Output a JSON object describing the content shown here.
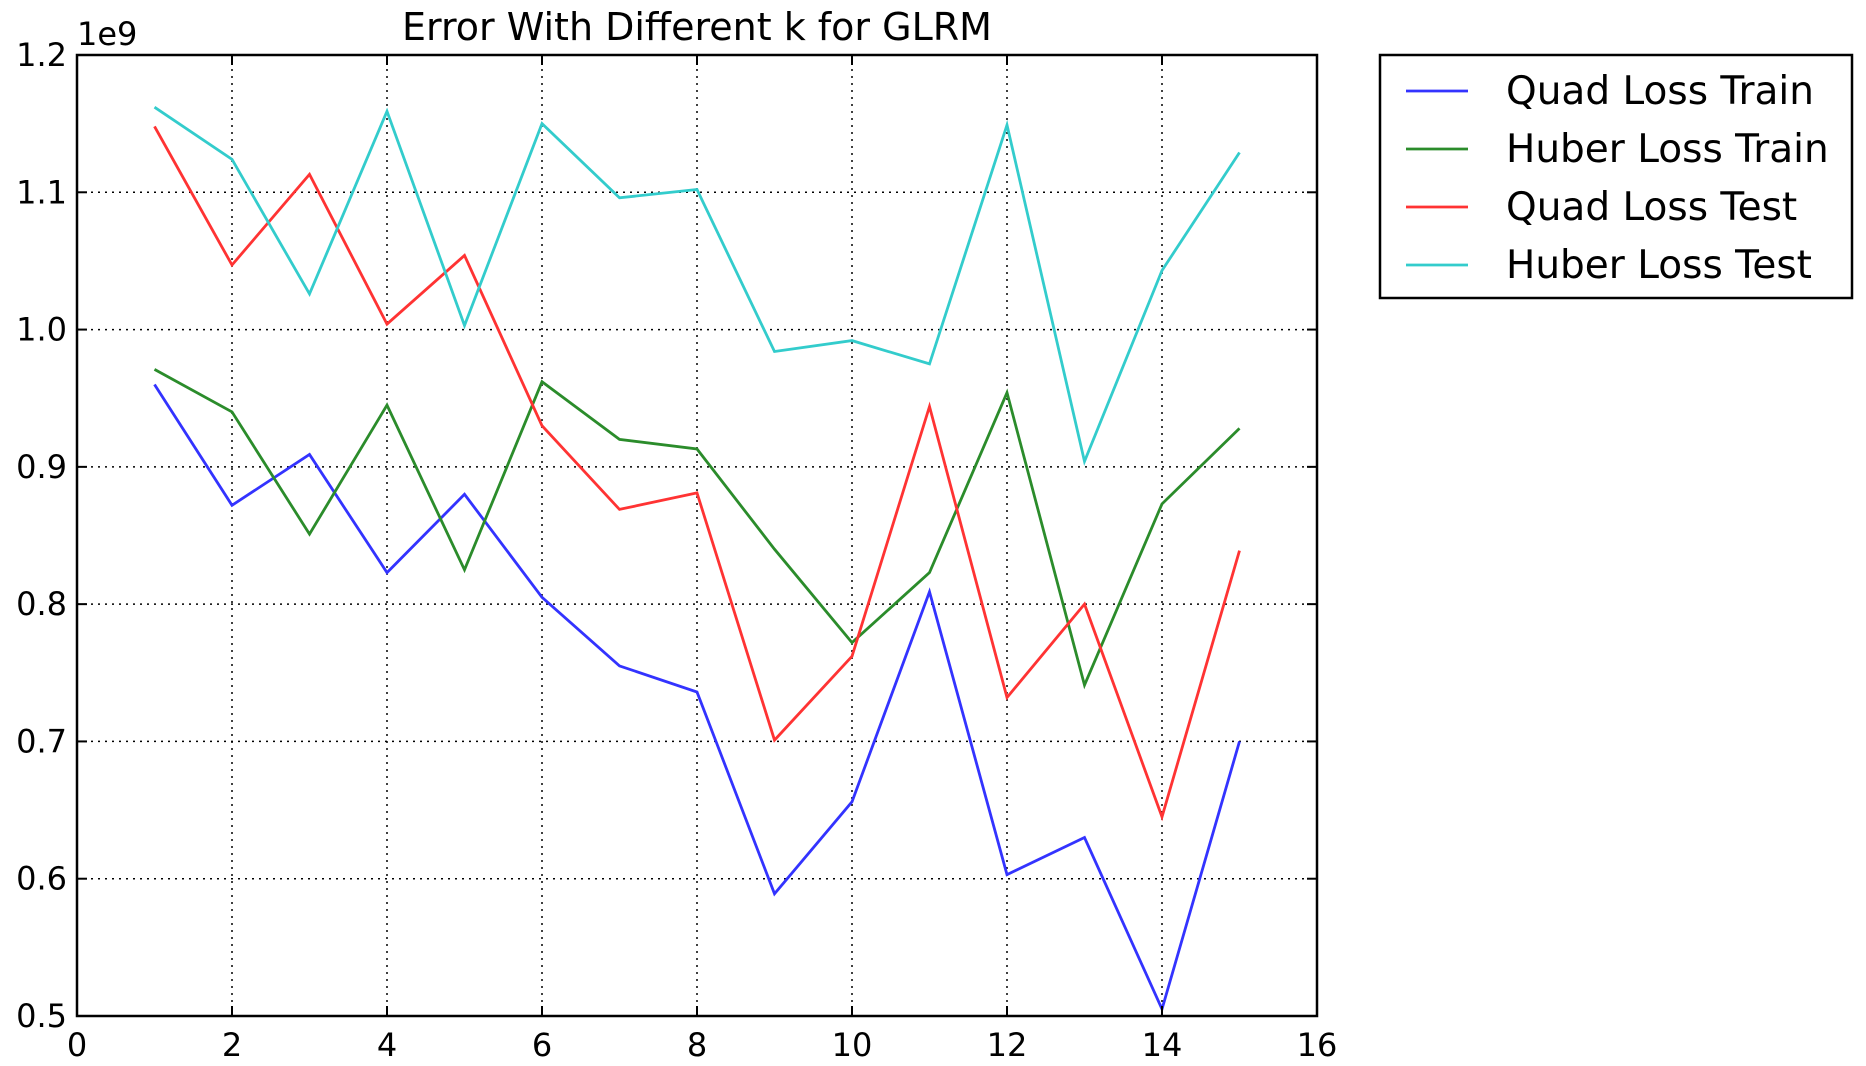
{
  "chart_data": {
    "type": "line",
    "title": "Error With Different k for GLRM",
    "xlabel": "",
    "ylabel": "",
    "y_offset_label": "1e9",
    "xlim": [
      0,
      16
    ],
    "ylim": [
      0.5,
      1.2
    ],
    "x_ticks": [
      "0",
      "2",
      "4",
      "6",
      "8",
      "10",
      "12",
      "14",
      "16"
    ],
    "y_ticks": [
      "0.5",
      "0.6",
      "0.7",
      "0.8",
      "0.9",
      "1.0",
      "1.1",
      "1.2"
    ],
    "grid": true,
    "legend_position": "outside-top-right",
    "x": [
      1,
      2,
      3,
      4,
      5,
      6,
      7,
      8,
      9,
      10,
      11,
      12,
      13,
      14,
      15
    ],
    "series": [
      {
        "name": "Quad Loss Train",
        "color": "#3333ff",
        "values": [
          0.96,
          0.872,
          0.909,
          0.823,
          0.88,
          0.805,
          0.755,
          0.736,
          0.589,
          0.656,
          0.809,
          0.603,
          0.63,
          0.505,
          0.7
        ]
      },
      {
        "name": "Huber Loss Train",
        "color": "#2b8c2b",
        "values": [
          0.971,
          0.94,
          0.851,
          0.945,
          0.825,
          0.962,
          0.92,
          0.913,
          0.84,
          0.772,
          0.823,
          0.954,
          0.741,
          0.873,
          0.928
        ]
      },
      {
        "name": "Quad Loss Test",
        "color": "#ff3333",
        "values": [
          1.148,
          1.047,
          1.113,
          1.004,
          1.054,
          0.93,
          0.869,
          0.881,
          0.701,
          0.762,
          0.944,
          0.732,
          0.8,
          0.645,
          0.839
        ]
      },
      {
        "name": "Huber Loss Test",
        "color": "#33cccc",
        "values": [
          1.162,
          1.124,
          1.026,
          1.159,
          1.003,
          1.15,
          1.096,
          1.102,
          0.984,
          0.992,
          0.975,
          1.149,
          0.904,
          1.043,
          1.129
        ]
      }
    ]
  }
}
